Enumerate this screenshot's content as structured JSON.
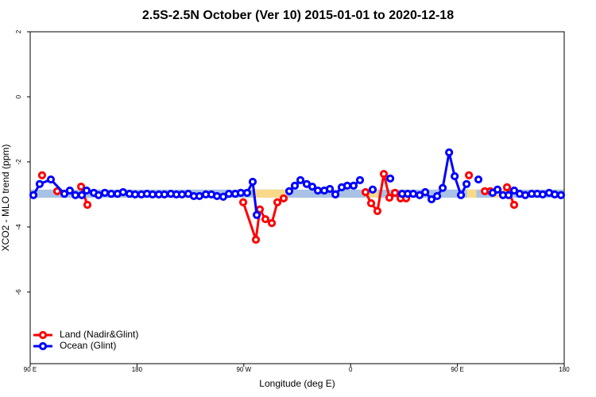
{
  "chart_data": {
    "type": "line",
    "title": "2.5S-2.5N October (Ver 10)   2015-01-01 to 2020-12-18",
    "x_label": "Longitude (deg E)",
    "y_label": "XCO2 - MLO trend (ppm)",
    "xlim": [
      90,
      540
    ],
    "xticks": [
      {
        "value": 90,
        "label": "90 E"
      },
      180,
      {
        "value": 270,
        "label": "90 W"
      },
      {
        "value": 360,
        "label": "0"
      },
      {
        "value": 450,
        "label": "90 E"
      },
      {
        "value": 540,
        "label": "180"
      }
    ],
    "ylim": [
      -8.2,
      2
    ],
    "yticks": [
      2,
      0,
      -2,
      -4,
      -6
    ],
    "legend": "bottom-left",
    "band": {
      "range": [
        -3.1,
        -2.85
      ],
      "color": "#a9c1e4",
      "highlight_color": "#f8d98a",
      "highlights": [
        [
          279,
          306
        ],
        [
          373,
          383
        ],
        [
          458,
          466
        ],
        [
          480,
          493
        ]
      ]
    },
    "series": [
      {
        "name": "Land (Nadir&Glint)",
        "color": "#ff0000",
        "x": [
          100,
          null,
          112.8,
          null,
          132.9,
          138.2,
          null,
          269.5,
          280.2,
          283.5,
          288.2,
          293.6,
          298.3,
          303.6,
          null,
          372.6,
          377.3,
          382.6,
          388,
          392.7,
          397.4,
          402.1,
          406.8,
          null,
          459.7,
          null,
          473.1,
          477.7,
          null,
          491.8,
          497.8
        ],
        "values": [
          -2.41,
          null,
          -2.9,
          null,
          -2.76,
          -3.32,
          null,
          -3.24,
          -4.39,
          -3.46,
          -3.76,
          -3.88,
          -3.24,
          -3.12,
          null,
          -2.93,
          -3.27,
          -3.51,
          -2.37,
          -3.1,
          -2.95,
          -3.12,
          -3.12,
          null,
          -2.41,
          null,
          -2.9,
          -2.9,
          null,
          -2.78,
          -3.32
        ]
      },
      {
        "name": "Ocean (Glint)",
        "color": "#0000ff",
        "x": [
          92.7,
          98,
          107.4,
          118.8,
          123.4,
          128.1,
          133.5,
          137.5,
          143.6,
          147.6,
          152.9,
          158.3,
          163.6,
          168.3,
          173.7,
          178.4,
          183.7,
          188.4,
          193.1,
          198.4,
          203.1,
          208.5,
          213.2,
          217.9,
          223.2,
          227.9,
          232.6,
          238,
          242.7,
          247.4,
          252.7,
          257.4,
          262.8,
          267.5,
          272.8,
          277.5,
          280.9,
          null,
          308.3,
          313,
          317.7,
          323,
          327.7,
          332.4,
          337.8,
          342.5,
          347.2,
          352.5,
          357.2,
          362.5,
          367.9,
          null,
          378.6,
          null,
          393.4,
          null,
          403.4,
          408.1,
          412.8,
          418.2,
          422.9,
          428.2,
          432.9,
          437.6,
          443,
          447.7,
          453,
          457.7,
          null,
          467.7,
          null,
          479.7,
          483.8,
          488.4,
          493.1,
          497.8,
          502.5,
          507.2,
          512.6,
          517.3,
          521.9,
          527.3,
          532,
          537.3
        ],
        "values": [
          -3.02,
          -2.68,
          -2.54,
          -2.98,
          -2.88,
          -3.02,
          -3.02,
          -2.88,
          -2.95,
          -3.02,
          -2.95,
          -2.98,
          -2.98,
          -2.93,
          -2.98,
          -3.0,
          -3.0,
          -2.98,
          -3.0,
          -3.0,
          -3.0,
          -2.98,
          -3.0,
          -3.0,
          -2.98,
          -3.05,
          -3.05,
          -3.0,
          -3.0,
          -3.05,
          -3.07,
          -2.98,
          -2.98,
          -2.95,
          -2.95,
          -2.61,
          -3.63,
          null,
          -2.9,
          -2.73,
          -2.56,
          -2.68,
          -2.76,
          -2.88,
          -2.88,
          -2.83,
          -3.0,
          -2.78,
          -2.73,
          -2.73,
          -2.56,
          null,
          -2.85,
          null,
          -2.51,
          null,
          -2.98,
          -2.98,
          -2.98,
          -3.02,
          -2.93,
          -3.15,
          -3.05,
          -2.8,
          -1.71,
          -2.44,
          -3.02,
          -2.68,
          null,
          -2.54,
          null,
          -2.95,
          -2.85,
          -3.02,
          -3.02,
          -2.88,
          -2.98,
          -3.02,
          -2.98,
          -2.98,
          -3.0,
          -2.95,
          -3.0,
          -3.02
        ]
      }
    ]
  }
}
